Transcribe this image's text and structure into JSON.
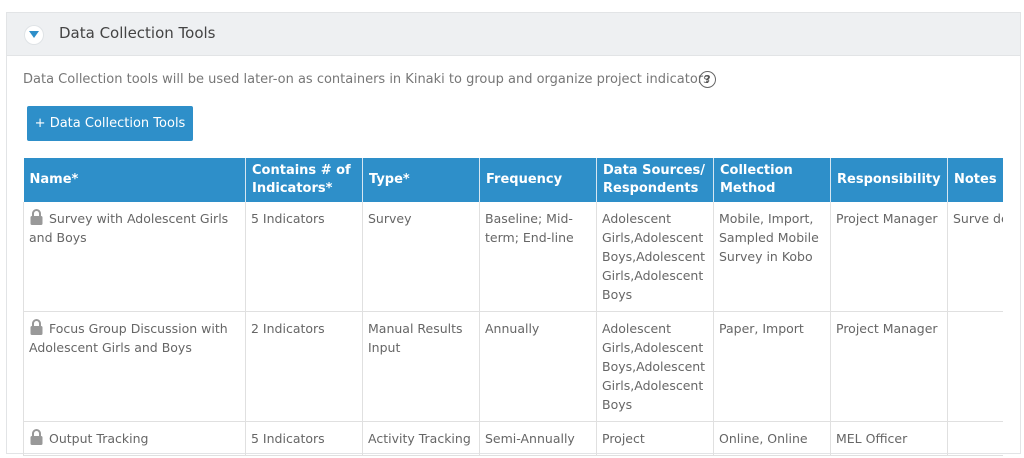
{
  "panel": {
    "title": "Data Collection Tools",
    "description": "Data Collection tools will be used later-on as containers in Kinaki to group and organize project indicators",
    "help": "?",
    "add_button": "+ Data Collection Tools"
  },
  "table": {
    "headers": [
      "Name*",
      "Contains # of Indicators*",
      "Type*",
      "Frequency",
      "Data Sources/ Respondents",
      "Collection Method",
      "Responsibility",
      "Notes"
    ],
    "rows": [
      {
        "name": "Survey with Adolescent Girls and Boys",
        "indicators": "5 Indicators",
        "type": "Survey",
        "frequency": "Baseline; Mid-term; End-line",
        "sources": "Adolescent Girls,Adolescent Boys,Adolescent Girls,Adolescent Boys",
        "method": "Mobile, Import, Sampled Mobile Survey in Kobo",
        "responsibility": "Project Manager",
        "notes": "Surve de Kobo To"
      },
      {
        "name": "Focus Group Discussion with Adolescent Girls and Boys",
        "indicators": "2 Indicators",
        "type": "Manual Results Input",
        "frequency": "Annually",
        "sources": "Adolescent Girls,Adolescent Boys,Adolescent Girls,Adolescent Boys",
        "method": "Paper, Import",
        "responsibility": "Project Manager",
        "notes": ""
      },
      {
        "name": "Output Tracking",
        "indicators": "5 Indicators",
        "type": "Activity Tracking",
        "frequency": "Semi-Annually",
        "sources": "Project",
        "method": "Online, Online",
        "responsibility": "MEL Officer",
        "notes": ""
      }
    ]
  },
  "colors": {
    "accent": "#2e8fc9",
    "header_bg": "#eef0f2"
  }
}
